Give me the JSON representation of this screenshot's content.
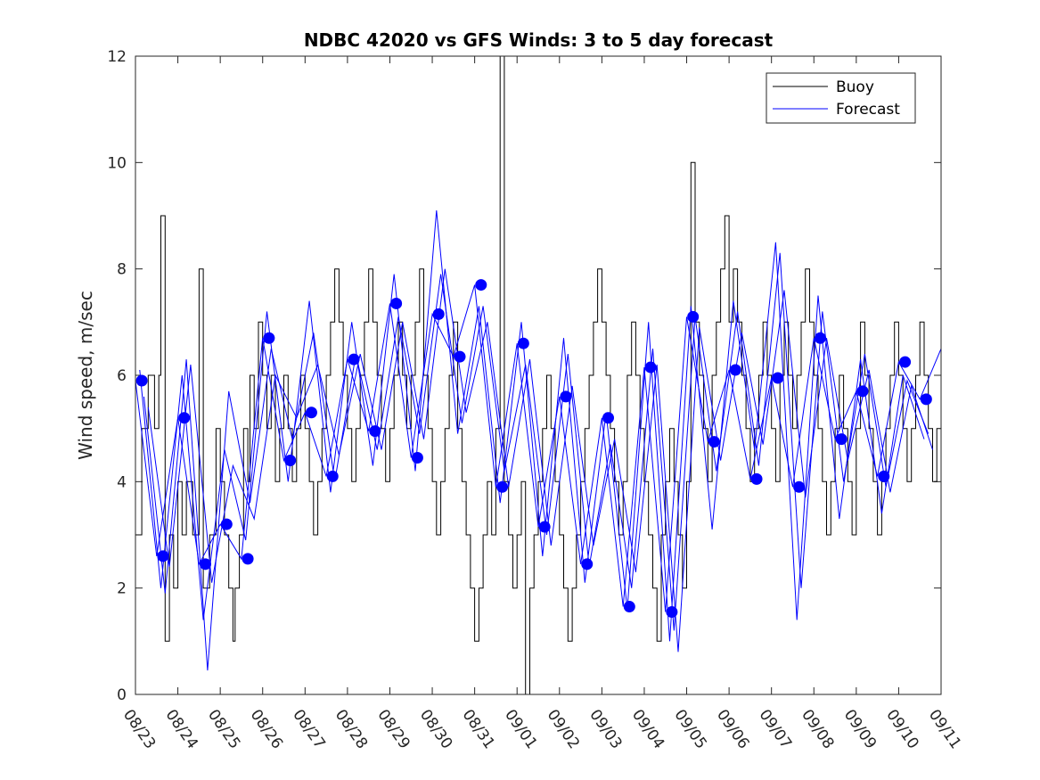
{
  "chart_data": {
    "type": "line",
    "title": "NDBC 42020 vs GFS Winds: 3 to 5 day forecast",
    "xlabel": "",
    "ylabel": "Wind speed, m/sec",
    "ylim": [
      0,
      12
    ],
    "xlim": [
      0,
      19
    ],
    "yticks": [
      0,
      2,
      4,
      6,
      8,
      10,
      12
    ],
    "xtick_labels": [
      "08/23",
      "08/24",
      "08/25",
      "08/26",
      "08/27",
      "08/28",
      "08/29",
      "08/30",
      "08/31",
      "09/01",
      "09/02",
      "09/03",
      "09/04",
      "09/05",
      "09/06",
      "09/07",
      "09/08",
      "09/09",
      "09/10",
      "09/11"
    ],
    "legend": {
      "position": "top-right",
      "entries": [
        "Buoy",
        "Forecast"
      ]
    },
    "colors": {
      "buoy": "#000000",
      "forecast": "#0000ff",
      "axes": "#262626"
    },
    "buoy_x": [
      0,
      0.15,
      0.3,
      0.45,
      0.55,
      0.6,
      0.7,
      0.8,
      0.9,
      1.0,
      1.1,
      1.2,
      1.35,
      1.5,
      1.6,
      1.75,
      1.9,
      2.0,
      2.1,
      2.2,
      2.3,
      2.35,
      2.45,
      2.55,
      2.65,
      2.7,
      2.8,
      2.9,
      3.0,
      3.1,
      3.2,
      3.3,
      3.4,
      3.5,
      3.6,
      3.7,
      3.8,
      3.9,
      4.0,
      4.1,
      4.2,
      4.3,
      4.4,
      4.5,
      4.6,
      4.7,
      4.8,
      4.9,
      5.0,
      5.1,
      5.2,
      5.3,
      5.4,
      5.5,
      5.6,
      5.7,
      5.8,
      5.9,
      6.0,
      6.1,
      6.2,
      6.3,
      6.4,
      6.5,
      6.6,
      6.7,
      6.8,
      6.9,
      7.0,
      7.1,
      7.2,
      7.3,
      7.4,
      7.5,
      7.6,
      7.7,
      7.8,
      7.9,
      8.0,
      8.1,
      8.2,
      8.3,
      8.4,
      8.5,
      8.6,
      8.7,
      8.8,
      8.9,
      9.0,
      9.1,
      9.2,
      9.3,
      9.4,
      9.5,
      9.6,
      9.7,
      9.8,
      9.9,
      10.0,
      10.1,
      10.2,
      10.3,
      10.4,
      10.5,
      10.6,
      10.7,
      10.8,
      10.9,
      11.0,
      11.1,
      11.2,
      11.3,
      11.4,
      11.5,
      11.6,
      11.7,
      11.8,
      11.9,
      12.0,
      12.1,
      12.2,
      12.3,
      12.4,
      12.5,
      12.6,
      12.7,
      12.8,
      12.9,
      13.0,
      13.1,
      13.2,
      13.3,
      13.4,
      13.5,
      13.6,
      13.7,
      13.8,
      13.9,
      14.0,
      14.1,
      14.2,
      14.3,
      14.4,
      14.5,
      14.6,
      14.7,
      14.8,
      14.9,
      15.0,
      15.1,
      15.2,
      15.3,
      15.4,
      15.5,
      15.6,
      15.7,
      15.8,
      15.9,
      16.0,
      16.1,
      16.2,
      16.3,
      16.4,
      16.5,
      16.6,
      16.7,
      16.8,
      16.9,
      17.0,
      17.1,
      17.2,
      17.3,
      17.4,
      17.5,
      17.6,
      17.7,
      17.8,
      17.9,
      18.0,
      18.1,
      18.2,
      18.3,
      18.4,
      18.5,
      18.6,
      18.7,
      18.8,
      18.9,
      19.0
    ],
    "buoy_y": [
      3,
      5,
      6,
      5,
      6,
      9,
      1,
      3,
      2,
      4,
      3,
      4,
      3,
      8,
      2,
      3,
      5,
      4,
      3,
      2,
      1,
      2,
      3,
      5,
      4,
      6,
      5,
      7,
      6,
      5,
      6,
      4,
      5,
      6,
      5,
      4,
      5,
      6,
      5,
      4,
      3,
      4,
      5,
      6,
      7,
      8,
      7,
      6,
      5,
      4,
      5,
      6,
      7,
      8,
      7,
      6,
      5,
      4,
      5,
      6,
      7,
      6,
      5,
      6,
      7,
      8,
      6,
      5,
      4,
      3,
      4,
      5,
      6,
      7,
      5,
      4,
      3,
      2,
      1,
      2,
      3,
      4,
      3,
      5,
      12,
      4,
      3,
      2,
      3,
      4,
      0,
      2,
      3,
      4,
      5,
      6,
      5,
      4,
      3,
      2,
      1,
      2,
      3,
      4,
      5,
      6,
      7,
      8,
      7,
      6,
      5,
      4,
      3,
      4,
      6,
      7,
      6,
      5,
      4,
      3,
      2,
      1,
      3,
      4,
      5,
      4,
      3,
      2,
      4,
      10,
      7,
      6,
      5,
      4,
      6,
      7,
      8,
      9,
      7,
      8,
      7,
      6,
      5,
      4,
      5,
      6,
      7,
      6,
      5,
      4,
      6,
      7,
      6,
      5,
      6,
      7,
      8,
      7,
      6,
      5,
      4,
      3,
      4,
      5,
      6,
      5,
      4,
      3,
      5,
      7,
      6,
      5,
      4,
      3,
      4,
      5,
      6,
      7,
      6,
      5,
      4,
      5,
      6,
      7,
      6,
      5,
      4,
      5,
      6,
      7
    ],
    "forecast_runs": [
      {
        "x": [
          0,
          0.5,
          1,
          1.5,
          2,
          2.5,
          3,
          3.5,
          4,
          4.5,
          5,
          5.5,
          6,
          6.5,
          7,
          7.5,
          8,
          8.5,
          9,
          9.5,
          10,
          10.5,
          11,
          11.5,
          12,
          12.5,
          13,
          13.5,
          14,
          14.5,
          15,
          15.5,
          16,
          16.5,
          17,
          17.5,
          18,
          18.5,
          19
        ],
        "y": [
          5.9,
          2.6,
          5.2,
          2.45,
          3.2,
          2.55,
          6.7,
          4.4,
          5.3,
          4.1,
          6.3,
          4.95,
          7.35,
          4.45,
          7.15,
          6.35,
          7.7,
          3.9,
          6.6,
          3.15,
          5.6,
          2.45,
          5.2,
          1.65,
          6.15,
          1.55,
          7.1,
          4.75,
          6.1,
          4.05,
          5.95,
          3.9,
          6.7,
          4.8,
          5.7,
          4.1,
          6.25,
          5.55,
          6.5
        ]
      },
      {
        "x": [
          0.1,
          0.6,
          1.1,
          1.6,
          2.1,
          2.6,
          3.1,
          3.6,
          4.1,
          4.6,
          5.1,
          5.6,
          6.1,
          6.6,
          7.1,
          7.6,
          8.1,
          8.6,
          9.1,
          9.6,
          10.1,
          10.6,
          11.1,
          11.6,
          12.1,
          12.6,
          13.1,
          13.6,
          14.1,
          14.6,
          15.1,
          15.6,
          16.1,
          16.6,
          17.1,
          17.6,
          18.1,
          18.6
        ],
        "y": [
          6.1,
          2.0,
          6.0,
          1.4,
          4.6,
          2.9,
          7.2,
          4.0,
          7.4,
          3.8,
          7.0,
          4.3,
          7.9,
          4.2,
          9.1,
          4.9,
          7.3,
          3.6,
          7.0,
          2.6,
          6.7,
          2.1,
          5.3,
          1.6,
          7.0,
          1.0,
          7.3,
          3.1,
          7.4,
          4.6,
          8.5,
          1.4,
          7.5,
          3.3,
          6.3,
          3.4,
          6.0,
          4.8
        ]
      },
      {
        "x": [
          0.2,
          0.7,
          1.2,
          1.7,
          2.2,
          2.7,
          3.2,
          3.7,
          4.2,
          4.7,
          5.2,
          5.7,
          6.2,
          6.7,
          7.2,
          7.7,
          8.2,
          8.7,
          9.2,
          9.7,
          10.2,
          10.7,
          11.2,
          11.7,
          12.2,
          12.7,
          13.2,
          13.7,
          14.2,
          14.7,
          15.2,
          15.7,
          16.2,
          16.7,
          17.2,
          17.7,
          18.2,
          18.7
        ],
        "y": [
          5.6,
          1.9,
          6.3,
          0.45,
          5.7,
          3.6,
          6.5,
          4.8,
          6.8,
          4.0,
          6.4,
          4.6,
          7.1,
          4.9,
          7.9,
          5.1,
          7.3,
          4.2,
          6.2,
          3.0,
          6.4,
          2.4,
          4.7,
          2.0,
          6.5,
          1.2,
          7.1,
          4.2,
          7.2,
          4.3,
          8.3,
          2.0,
          7.2,
          4.0,
          6.4,
          3.9,
          5.9,
          4.9
        ]
      },
      {
        "x": [
          0.3,
          0.8,
          1.3,
          1.8,
          2.3,
          2.8,
          3.3,
          3.8,
          4.3,
          4.8,
          5.3,
          5.8,
          6.3,
          6.8,
          7.3,
          7.8,
          8.3,
          8.8,
          9.3,
          9.8,
          10.3,
          10.8,
          11.3,
          11.8,
          12.3,
          12.8,
          13.3,
          13.8,
          14.3,
          14.8,
          15.3,
          15.8,
          16.3,
          16.8,
          17.3,
          17.8,
          18.3,
          18.8
        ],
        "y": [
          5.4,
          2.4,
          6.2,
          2.1,
          4.3,
          3.3,
          6.0,
          5.2,
          6.2,
          4.5,
          6.4,
          4.6,
          7.0,
          4.8,
          8.0,
          5.3,
          7.0,
          3.9,
          6.3,
          2.8,
          5.8,
          2.8,
          4.8,
          2.3,
          6.2,
          0.8,
          6.9,
          4.4,
          6.8,
          4.7,
          7.6,
          3.7,
          6.7,
          4.4,
          6.1,
          3.8,
          5.8,
          4.6
        ]
      }
    ],
    "forecast_markers": {
      "x": [
        0.15,
        0.65,
        1.15,
        1.65,
        2.15,
        2.65,
        3.15,
        3.65,
        4.15,
        4.65,
        5.15,
        5.65,
        6.15,
        6.65,
        7.15,
        7.65,
        8.15,
        8.65,
        9.15,
        9.65,
        10.15,
        10.65,
        11.15,
        11.65,
        12.15,
        12.65,
        13.15,
        13.65,
        14.15,
        14.65,
        15.15,
        15.65,
        16.15,
        16.65,
        17.15,
        17.65,
        18.15,
        18.65
      ],
      "y": [
        5.9,
        2.6,
        5.2,
        2.45,
        3.2,
        2.55,
        6.7,
        4.4,
        5.3,
        4.1,
        6.3,
        4.95,
        7.35,
        4.45,
        7.15,
        6.35,
        7.7,
        3.9,
        6.6,
        3.15,
        5.6,
        2.45,
        5.2,
        1.65,
        6.15,
        1.55,
        7.1,
        4.75,
        6.1,
        4.05,
        5.95,
        3.9,
        6.7,
        4.8,
        5.7,
        4.1,
        6.25,
        5.55
      ]
    }
  }
}
